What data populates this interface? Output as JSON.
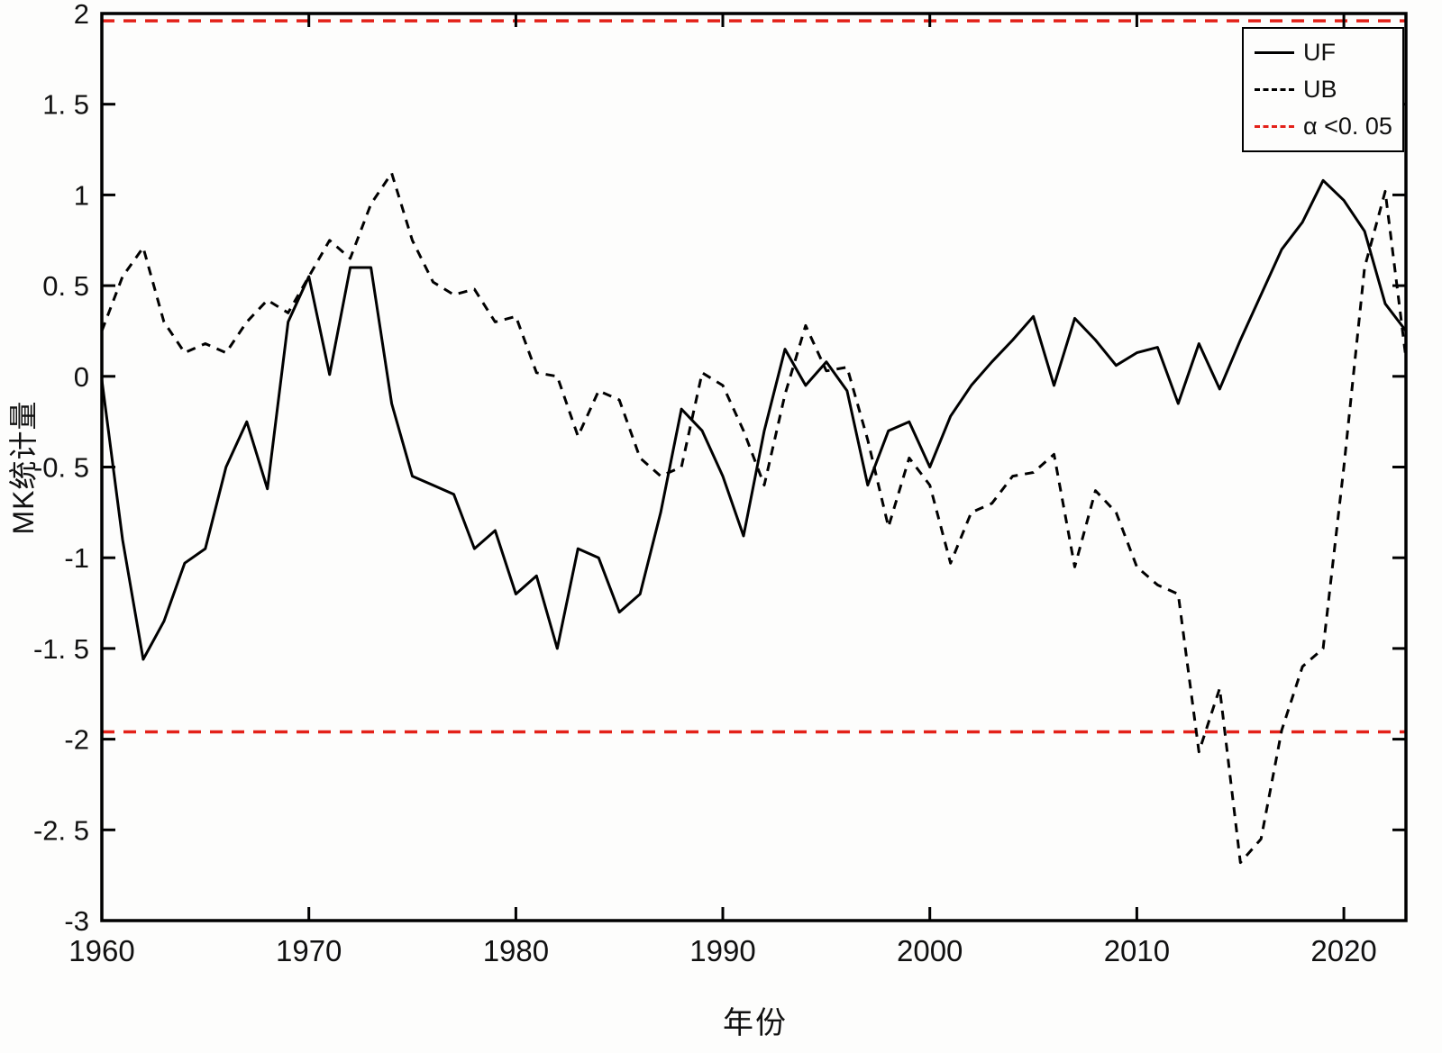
{
  "chart_data": {
    "type": "line",
    "title": "",
    "xlabel": "年份",
    "ylabel": "MK统计量",
    "xlim": [
      1960,
      2023
    ],
    "ylim": [
      -3,
      2
    ],
    "grid": false,
    "legend_position": "top-right",
    "x_ticks": [
      {
        "value": 1960,
        "label": "1960"
      },
      {
        "value": 1970,
        "label": "1970"
      },
      {
        "value": 1980,
        "label": "1980"
      },
      {
        "value": 1990,
        "label": "1990"
      },
      {
        "value": 2000,
        "label": "2000"
      },
      {
        "value": 2010,
        "label": "2010"
      },
      {
        "value": 2020,
        "label": "2020"
      }
    ],
    "y_ticks": [
      {
        "value": 2,
        "label": "2"
      },
      {
        "value": 1.5,
        "label": "1. 5"
      },
      {
        "value": 1,
        "label": "1"
      },
      {
        "value": 0.5,
        "label": "0. 5"
      },
      {
        "value": 0,
        "label": "0"
      },
      {
        "value": -0.5,
        "label": "-0. 5"
      },
      {
        "value": -1,
        "label": "-1"
      },
      {
        "value": -1.5,
        "label": "-1. 5"
      },
      {
        "value": -2,
        "label": "-2"
      },
      {
        "value": -2.5,
        "label": "-2. 5"
      },
      {
        "value": -3,
        "label": "-3"
      }
    ],
    "years": [
      1960,
      1961,
      1962,
      1963,
      1964,
      1965,
      1966,
      1967,
      1968,
      1969,
      1970,
      1971,
      1972,
      1973,
      1974,
      1975,
      1976,
      1977,
      1978,
      1979,
      1980,
      1981,
      1982,
      1983,
      1984,
      1985,
      1986,
      1987,
      1988,
      1989,
      1990,
      1991,
      1992,
      1993,
      1994,
      1995,
      1996,
      1997,
      1998,
      1999,
      2000,
      2001,
      2002,
      2003,
      2004,
      2005,
      2006,
      2007,
      2008,
      2009,
      2010,
      2011,
      2012,
      2013,
      2014,
      2015,
      2016,
      2017,
      2018,
      2019,
      2020,
      2021,
      2022,
      2023
    ],
    "series": [
      {
        "name": "UF",
        "style": "solid",
        "color": "#000000",
        "values": [
          -0.02,
          -0.9,
          -1.56,
          -1.35,
          -1.03,
          -0.95,
          -0.5,
          -0.25,
          -0.62,
          0.3,
          0.55,
          0.01,
          0.6,
          0.6,
          -0.15,
          -0.55,
          -0.6,
          -0.65,
          -0.95,
          -0.85,
          -1.2,
          -1.1,
          -1.5,
          -0.95,
          -1.0,
          -1.3,
          -1.2,
          -0.75,
          -0.18,
          -0.3,
          -0.55,
          -0.88,
          -0.3,
          0.15,
          -0.05,
          0.08,
          -0.08,
          -0.6,
          -0.3,
          -0.25,
          -0.5,
          -0.22,
          -0.05,
          0.08,
          0.2,
          0.33,
          -0.05,
          0.32,
          0.2,
          0.06,
          0.13,
          0.16,
          -0.15,
          0.18,
          -0.07,
          0.2,
          0.45,
          0.7,
          0.85,
          1.08,
          0.97,
          0.8,
          0.4,
          0.25
        ]
      },
      {
        "name": "UB",
        "style": "dashed",
        "color": "#000000",
        "values": [
          0.25,
          0.55,
          0.71,
          0.3,
          0.13,
          0.18,
          0.13,
          0.3,
          0.42,
          0.35,
          0.55,
          0.75,
          0.65,
          0.95,
          1.12,
          0.75,
          0.52,
          0.45,
          0.48,
          0.3,
          0.33,
          0.02,
          0.0,
          -0.33,
          -0.08,
          -0.13,
          -0.45,
          -0.55,
          -0.5,
          0.02,
          -0.05,
          -0.3,
          -0.6,
          -0.1,
          0.28,
          0.03,
          0.05,
          -0.35,
          -0.83,
          -0.45,
          -0.6,
          -1.03,
          -0.75,
          -0.7,
          -0.55,
          -0.53,
          -0.43,
          -1.05,
          -0.63,
          -0.75,
          -1.05,
          -1.15,
          -1.2,
          -2.07,
          -1.72,
          -2.68,
          -2.55,
          -1.95,
          -1.6,
          -1.5,
          -0.5,
          0.6,
          1.02,
          0.1
        ]
      }
    ],
    "significance": {
      "label": "α <0. 05",
      "color": "#e32119",
      "style": "dashed",
      "lines": [
        1.96,
        -1.96
      ]
    }
  }
}
